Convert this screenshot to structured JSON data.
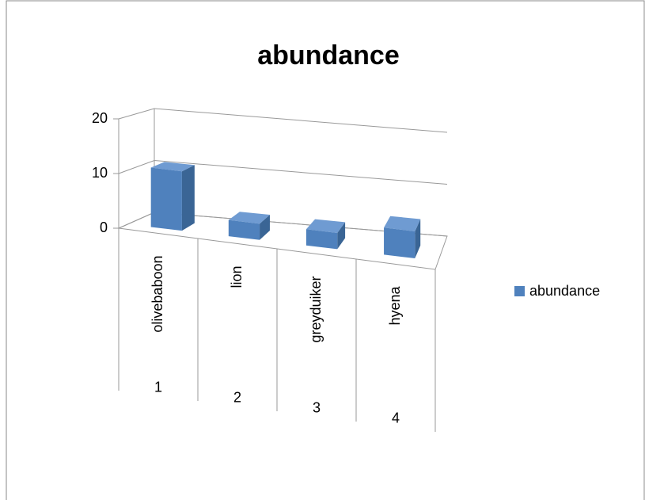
{
  "chart_data": {
    "type": "bar3d",
    "title": "abundance",
    "categories": [
      "olivebaboon",
      "lion",
      "greyduiker",
      "hyena"
    ],
    "category_numbers": [
      "1",
      "2",
      "3",
      "4"
    ],
    "series": [
      {
        "name": "abundance",
        "color": "#4f81bd",
        "values": [
          11,
          3,
          3,
          5
        ]
      }
    ],
    "ylim": [
      0,
      20
    ],
    "yticks": [
      0,
      10,
      20
    ],
    "grid": true,
    "legend": "right"
  }
}
